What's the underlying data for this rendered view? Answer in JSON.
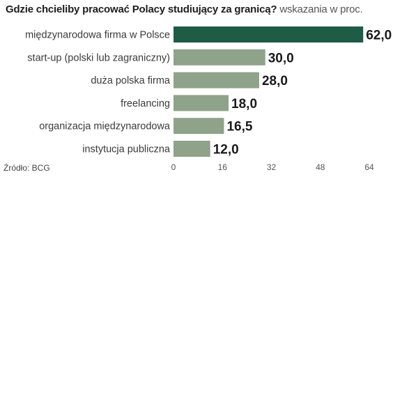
{
  "chart_data": {
    "type": "bar",
    "orientation": "horizontal",
    "title": "Gdzie chcieliby pracować Polacy studiujący za granicą?",
    "subtitle": "wskazania w proc.",
    "categories": [
      "międzynarodowa firma w Polsce",
      "start-up (polski lub zagraniczny)",
      "duża polska firma",
      "freelancing",
      "organizacja międzynarodowa",
      "instytucja publiczna"
    ],
    "values": [
      62.0,
      30.0,
      28.0,
      18.0,
      16.5,
      12.0
    ],
    "value_labels": [
      "62,0",
      "30,0",
      "28,0",
      "18,0",
      "16,5",
      "12,0"
    ],
    "xlim": [
      0,
      64
    ],
    "xticks": [
      0,
      16,
      32,
      48,
      64
    ],
    "grid": false,
    "legend": "none",
    "source": "Źródło: BCG",
    "colors": {
      "highlight": "#1e5c46",
      "bar": "#8fa28a",
      "label": "#3a3a3a",
      "value": "#1a1a1a",
      "tick": "#555555"
    }
  }
}
